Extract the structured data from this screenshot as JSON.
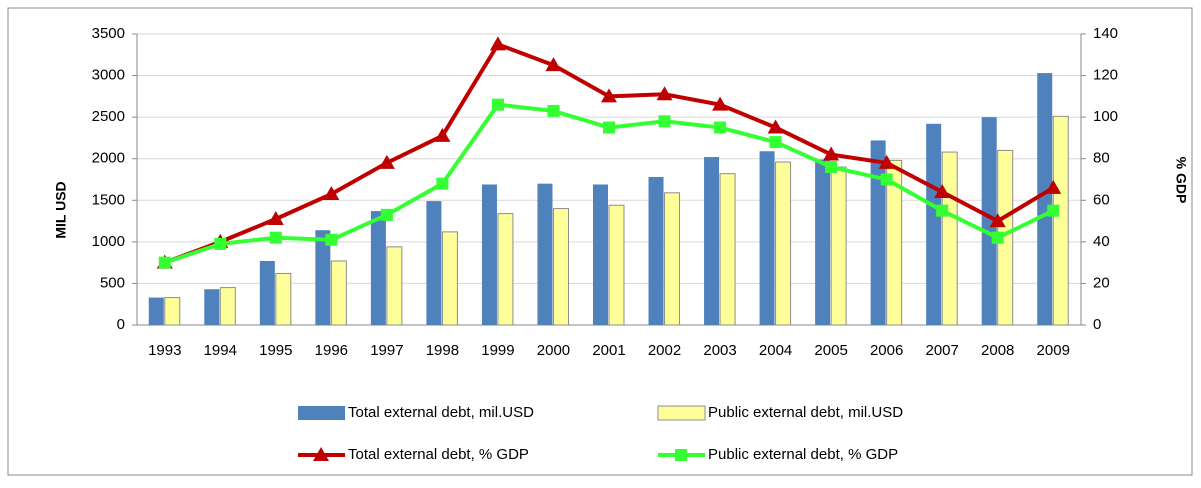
{
  "chart_data": {
    "type": "bar",
    "categories": [
      "1993",
      "1994",
      "1995",
      "1996",
      "1997",
      "1998",
      "1999",
      "2000",
      "2001",
      "2002",
      "2003",
      "2004",
      "2005",
      "2006",
      "2007",
      "2008",
      "2009"
    ],
    "series": [
      {
        "name": "Total external debt, mil.USD",
        "type": "bar",
        "color": "#4f81bd",
        "axis": "y",
        "values": [
          330,
          430,
          770,
          1140,
          1370,
          1490,
          1690,
          1700,
          1690,
          1780,
          2020,
          2090,
          1990,
          2220,
          2420,
          2500,
          3030
        ]
      },
      {
        "name": "Public external debt, mil.USD",
        "type": "bar",
        "color": "#ffff99",
        "axis": "y",
        "values": [
          330,
          450,
          620,
          770,
          940,
          1120,
          1340,
          1400,
          1440,
          1590,
          1820,
          1960,
          1900,
          1980,
          2080,
          2100,
          2510
        ]
      },
      {
        "name": "Total external debt, % GDP",
        "type": "line",
        "color": "#c00000",
        "marker": "triangle",
        "axis": "y2",
        "values": [
          30,
          40,
          51,
          63,
          78,
          91,
          135,
          125,
          110,
          111,
          106,
          95,
          82,
          78,
          64,
          50,
          66
        ]
      },
      {
        "name": "Public external debt, % GDP",
        "type": "line",
        "color": "#33ff33",
        "marker": "square",
        "axis": "y2",
        "values": [
          30,
          39,
          42,
          41,
          53,
          68,
          106,
          103,
          95,
          98,
          95,
          88,
          76,
          70,
          55,
          42,
          55
        ]
      }
    ],
    "ylabel": "MIL USD",
    "y2label": "% GDP",
    "ylim": [
      0,
      3500
    ],
    "yticks": [
      0,
      500,
      1000,
      1500,
      2000,
      2500,
      3000,
      3500
    ],
    "y2lim": [
      0,
      140
    ],
    "y2ticks": [
      0,
      20,
      40,
      60,
      80,
      100,
      120,
      140
    ],
    "grid": true,
    "legend": "bottom"
  }
}
